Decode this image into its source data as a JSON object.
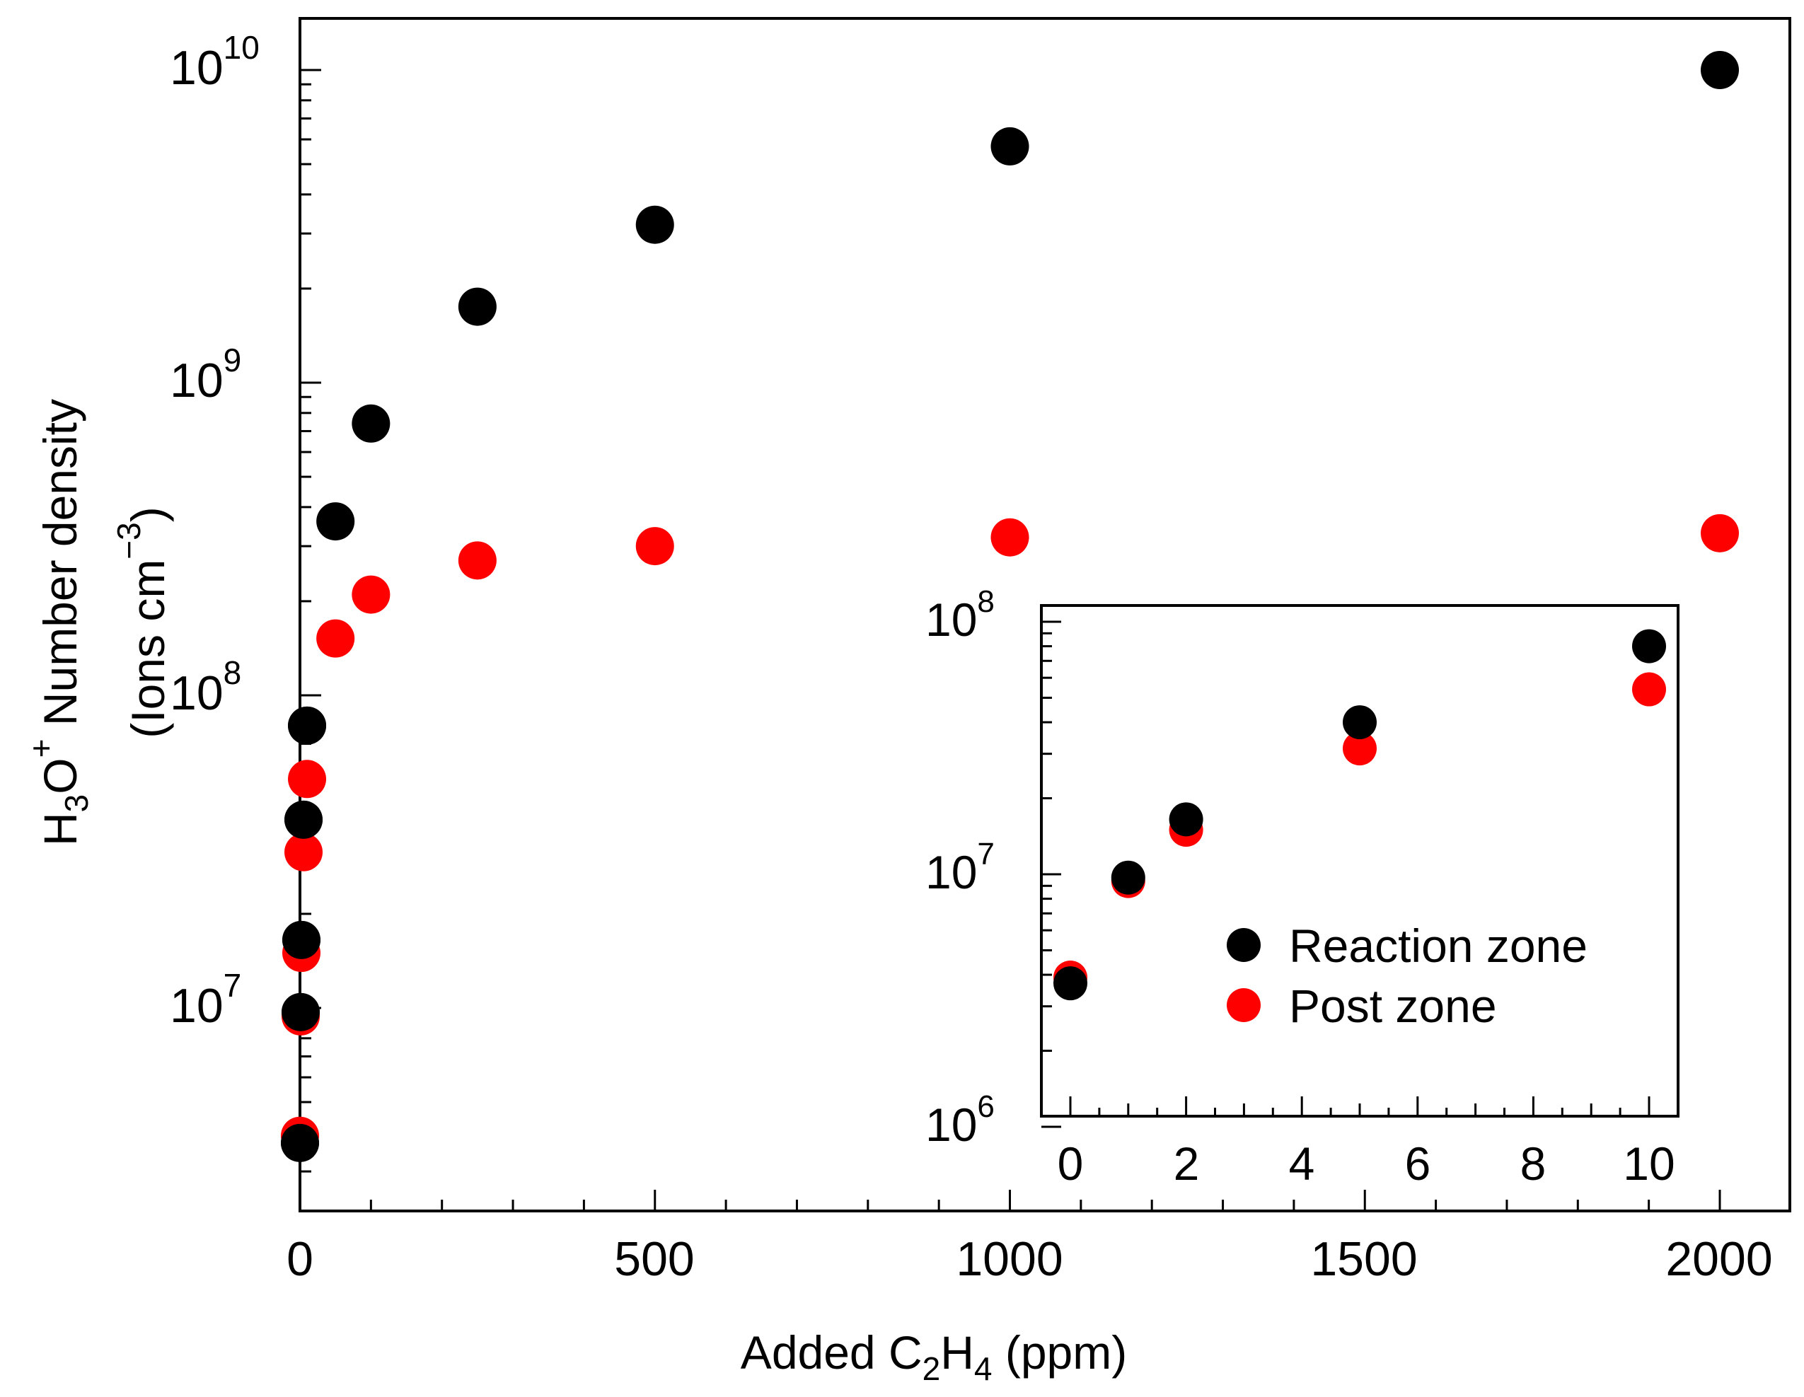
{
  "chart_data": [
    {
      "id": "main",
      "type": "scatter",
      "xlabel": "Added C2H4 (ppm)",
      "ylabel": "H3O+ Number density (Ions cm-3)",
      "xlim": [
        0,
        2100
      ],
      "ylim": [
        2000000.0,
        13000000000.0
      ],
      "yscale": "log",
      "x_ticks": [
        0,
        500,
        1000,
        1500,
        2000
      ],
      "y_ticks": [
        10000000,
        100000000,
        1000000000,
        10000000000
      ],
      "series": [
        {
          "name": "Reaction zone",
          "color": "#000000",
          "x": [
            0,
            1,
            2,
            5,
            10,
            50,
            100,
            250,
            500,
            1000,
            2000
          ],
          "y": [
            3700000,
            9700000,
            16500000,
            40000000,
            80000000,
            360000000,
            740000000,
            1750000000,
            3200000000,
            5700000000,
            10000000000
          ]
        },
        {
          "name": "Post zone",
          "color": "#ff0000",
          "x": [
            0,
            1,
            2,
            5,
            10,
            50,
            100,
            250,
            500,
            1000,
            2000
          ],
          "y": [
            3900000,
            9400000,
            15000000,
            31500000,
            54000000,
            152000000,
            210000000,
            270000000,
            300000000,
            320000000,
            330000000
          ]
        }
      ]
    },
    {
      "id": "inset",
      "type": "scatter",
      "xlim": [
        -0.5,
        10.5
      ],
      "ylim": [
        1000000,
        100000000
      ],
      "yscale": "log",
      "x_ticks": [
        0,
        2,
        4,
        6,
        8,
        10
      ],
      "y_ticks": [
        1000000,
        10000000,
        100000000
      ],
      "legend": {
        "position": "lower-right",
        "entries": [
          "Reaction zone",
          "Post zone"
        ]
      },
      "series": [
        {
          "name": "Reaction zone",
          "color": "#000000",
          "x": [
            0,
            1,
            2,
            5,
            10
          ],
          "y": [
            3700000,
            9700000,
            16500000,
            40000000,
            80000000
          ]
        },
        {
          "name": "Post zone",
          "color": "#ff0000",
          "x": [
            0,
            1,
            2,
            5,
            10
          ],
          "y": [
            3900000,
            9400000,
            15000000,
            31500000,
            54000000
          ]
        }
      ]
    }
  ],
  "axis_text": {
    "x_title": {
      "pre": "Added C",
      "sub1": "2",
      "mid": "H",
      "sub2": "4",
      "post": " (ppm)"
    },
    "y_title_line1": {
      "h": "H",
      "sub": "3",
      "o": "O",
      "sup": "+",
      "rest": " Number density"
    },
    "y_title_line2": {
      "pre": "(Ions cm",
      "sup": "−3",
      "post": ")"
    },
    "y_tick_labels": {
      "base": "10",
      "exponents_main": [
        "7",
        "8",
        "9",
        "10"
      ],
      "exponents_inset": [
        "6",
        "7",
        "8"
      ]
    },
    "x_tick_labels_main": [
      "0",
      "500",
      "1000",
      "1500",
      "2000"
    ],
    "x_tick_labels_inset": [
      "0",
      "2",
      "4",
      "6",
      "8",
      "10"
    ]
  }
}
